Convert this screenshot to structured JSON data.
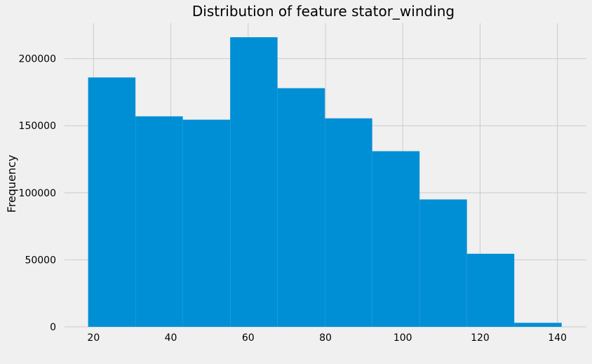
{
  "chart_data": {
    "type": "bar",
    "title": "Distribution of feature stator_winding",
    "xlabel": "",
    "ylabel": "Frequency",
    "bin_edges": [
      18.6,
      30.85,
      43.1,
      55.35,
      67.6,
      79.85,
      92.1,
      104.35,
      116.6,
      128.85,
      141.1
    ],
    "values": [
      186000,
      157000,
      154500,
      216000,
      178000,
      155500,
      131000,
      95000,
      54500,
      3000
    ],
    "xlim": [
      12.5,
      147.5
    ],
    "ylim": [
      0,
      226500
    ],
    "x_ticks": [
      20,
      40,
      60,
      80,
      100,
      120,
      140
    ],
    "y_ticks": [
      0,
      50000,
      100000,
      150000,
      200000
    ],
    "grid": true,
    "legend": "none",
    "colors": {
      "background": "#f0f0f0",
      "bar": "#008fd5",
      "grid": "#cbcbcb"
    }
  }
}
